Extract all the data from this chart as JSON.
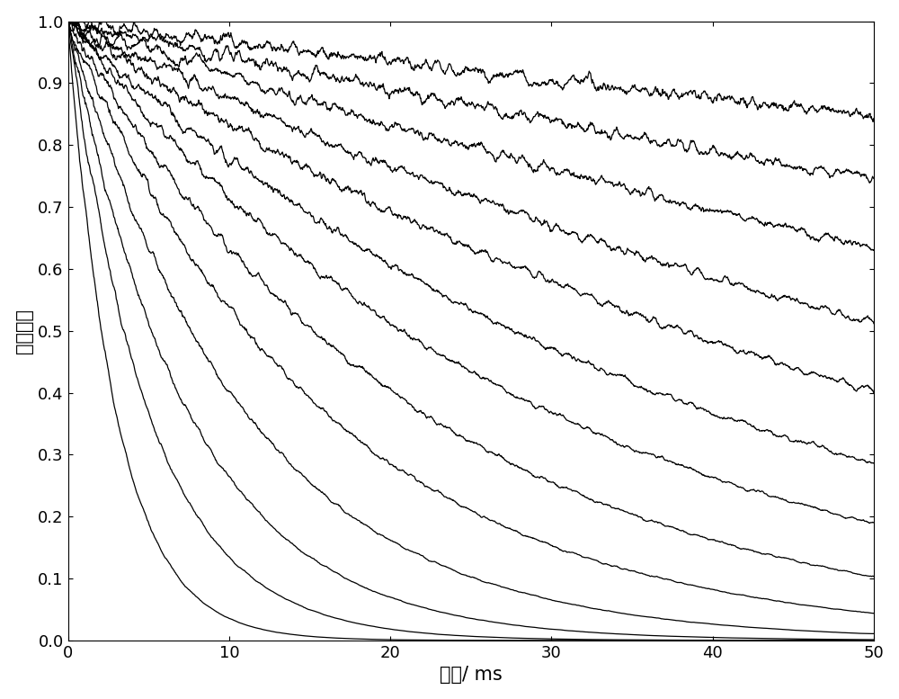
{
  "title": "",
  "xlabel": "时间/ ms",
  "ylabel": "相对幅値",
  "xlim": [
    0,
    50
  ],
  "ylim": [
    0,
    1
  ],
  "xticks": [
    0,
    10,
    20,
    30,
    40,
    50
  ],
  "yticks": [
    0,
    0.1,
    0.2,
    0.3,
    0.4,
    0.5,
    0.6,
    0.7,
    0.8,
    0.9,
    1
  ],
  "n_points": 2000,
  "decay_tau": [
    300,
    170,
    110,
    75,
    55,
    40,
    30,
    22,
    16,
    11,
    7.5,
    5.0,
    3.0
  ],
  "noise_scale": 0.006,
  "line_color": "#000000",
  "line_width": 0.9,
  "background_color": "#ffffff",
  "figsize": [
    10.0,
    7.77
  ],
  "dpi": 100
}
